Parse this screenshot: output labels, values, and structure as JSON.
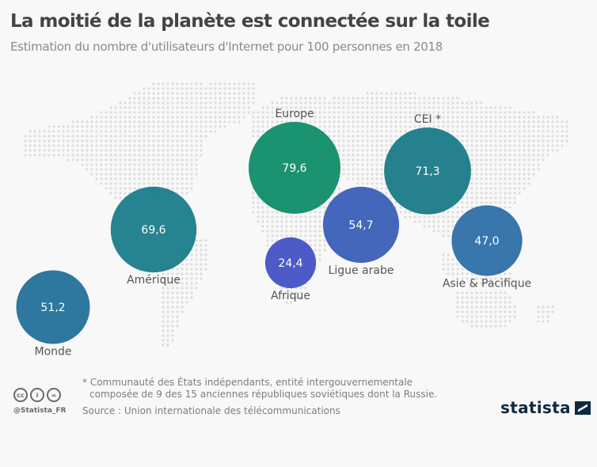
{
  "header": {
    "title": "La moitié de la planète est connectée sur la toile",
    "subtitle": "Estimation du nombre d'utilisateurs d'Internet pour 100 personnes en 2018"
  },
  "chart_data": {
    "type": "bubble",
    "title": "La moitié de la planète est connectée sur la toile",
    "subtitle": "Estimation du nombre d'utilisateurs d'Internet pour 100 personnes en 2018",
    "unit": "utilisateurs pour 100 personnes",
    "series": [
      {
        "name": "Europe",
        "value": 79.6,
        "label": "79,6",
        "color": "#0f8c68"
      },
      {
        "name": "CEI *",
        "value": 71.3,
        "label": "71,3",
        "color": "#1a7a88"
      },
      {
        "name": "Ligue arabe",
        "value": 54.7,
        "label": "54,7",
        "color": "#3a5fb8"
      },
      {
        "name": "Asie & Pacifique",
        "value": 47.0,
        "label": "47,0",
        "color": "#2d6fa8"
      },
      {
        "name": "Afrique",
        "value": 24.4,
        "label": "24,4",
        "color": "#4252c4"
      },
      {
        "name": "Amérique",
        "value": 69.6,
        "label": "69,6",
        "color": "#1a7c8a"
      },
      {
        "name": "Monde",
        "value": 51.2,
        "label": "51,2",
        "color": "#23709a"
      }
    ]
  },
  "footer": {
    "footnote_line1": "* Communauté des États indépendants, entité intergouvernementale",
    "footnote_line2": "composée de 9 des 15 anciennes républiques soviétiques dont la Russie.",
    "source": "Source : Union internationale des télécommunications",
    "handle": "@Statista_FR",
    "cc_labels": [
      "cc",
      "i",
      "="
    ],
    "logo": "statista"
  }
}
